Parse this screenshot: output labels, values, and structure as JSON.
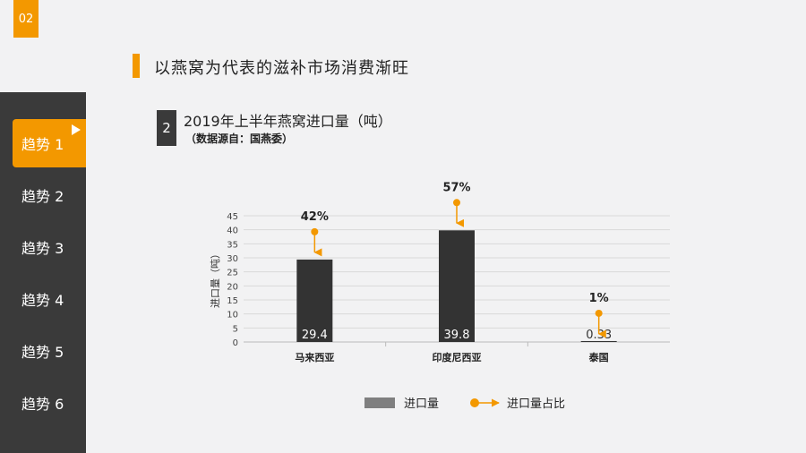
{
  "page_number": "02",
  "headline": "以燕窝为代表的滋补市场消费渐旺",
  "sidebar": {
    "items": [
      {
        "label": "趋势 1",
        "active": true
      },
      {
        "label": "趋势 2",
        "active": false
      },
      {
        "label": "趋势 3",
        "active": false
      },
      {
        "label": "趋势 4",
        "active": false
      },
      {
        "label": "趋势 5",
        "active": false
      },
      {
        "label": "趋势 6",
        "active": false
      }
    ]
  },
  "section": {
    "number": "2",
    "title": "2019年上半年燕窝进口量（吨）",
    "source": "（数据源自：国燕委）"
  },
  "colors": {
    "accent": "#f39800",
    "bar": "#333333",
    "sidebar": "#3a3a3a"
  },
  "chart_data": {
    "type": "bar",
    "categories": [
      "马来西亚",
      "印度尼西亚",
      "泰国"
    ],
    "value_labels": [
      "29.4",
      "39.8",
      "0.33"
    ],
    "values": [
      29.4,
      39.8,
      0.33
    ],
    "share_labels": [
      "42%",
      "57%",
      "1%"
    ],
    "shares": [
      42,
      57,
      1
    ],
    "ylabel": "进口量（吨）",
    "ylim": [
      0,
      45
    ],
    "yticks": [
      "0",
      "5",
      "10",
      "15",
      "20",
      "25",
      "30",
      "35",
      "40",
      "45"
    ],
    "grid": true,
    "legend": {
      "position": "bottom",
      "entries": [
        {
          "label": "进口量",
          "marker": "bar"
        },
        {
          "label": "进口量占比",
          "marker": "dot-arrow"
        }
      ]
    }
  }
}
